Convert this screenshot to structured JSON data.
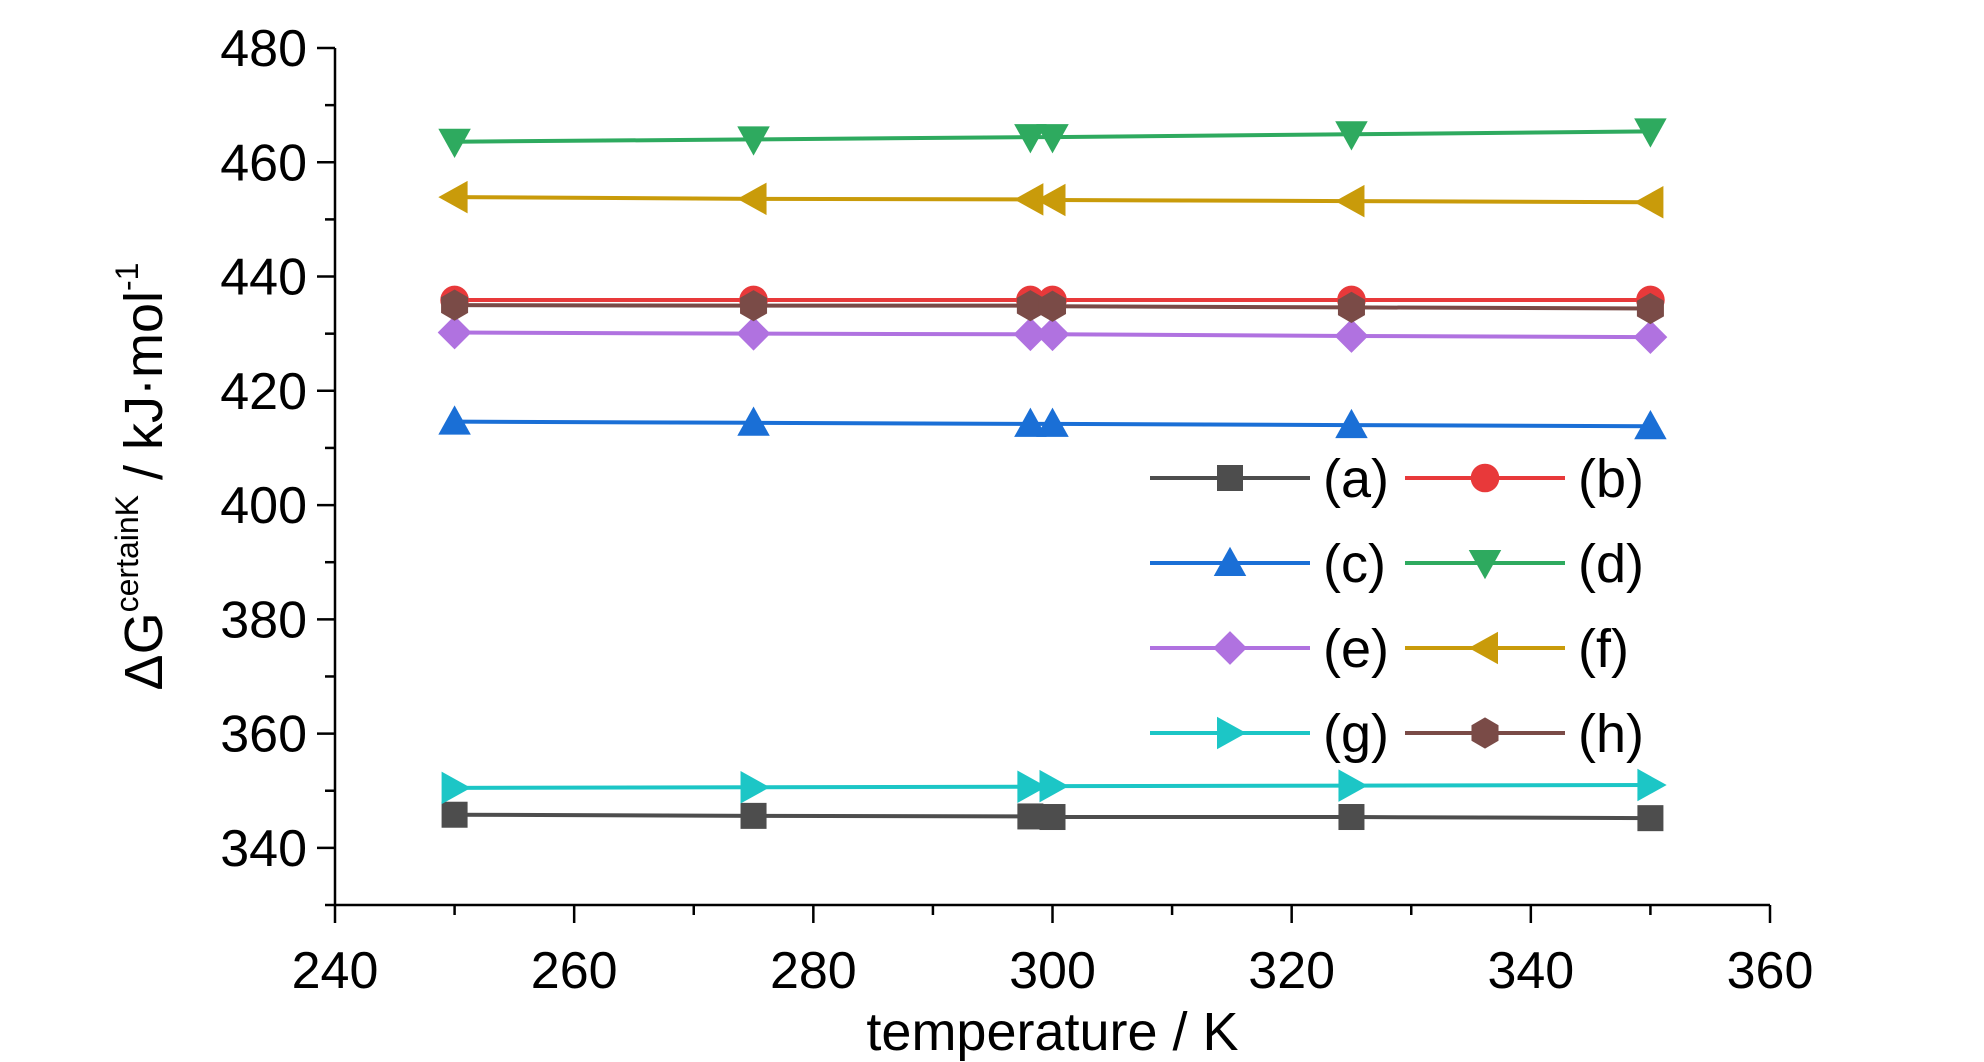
{
  "chart_data": {
    "type": "line",
    "xlabel": "temperature / K",
    "ylabel": {
      "delta": "Δ",
      "main": "G",
      "sup": "certainK",
      "units": " / kJ·mol",
      "units_sup": "-1"
    },
    "xlim": [
      240,
      360
    ],
    "ylim": [
      330,
      480
    ],
    "xticks": [
      240,
      260,
      280,
      300,
      320,
      340,
      360
    ],
    "yticks": [
      340,
      360,
      380,
      400,
      420,
      440,
      460,
      480
    ],
    "x": [
      250,
      275,
      298.15,
      300,
      325,
      350
    ],
    "legend_position": "center-right",
    "series": [
      {
        "name": "(a)",
        "marker": "square",
        "color": "#4d4d4d",
        "values": [
          345.8,
          345.6,
          345.5,
          345.4,
          345.4,
          345.2
        ]
      },
      {
        "name": "(b)",
        "marker": "circle",
        "color": "#e8393a",
        "values": [
          435.9,
          435.9,
          435.9,
          435.9,
          435.9,
          435.9
        ]
      },
      {
        "name": "(c)",
        "marker": "triangle-up",
        "color": "#1a6fd6",
        "values": [
          414.6,
          414.4,
          414.2,
          414.2,
          414.0,
          413.8
        ]
      },
      {
        "name": "(d)",
        "marker": "triangle-down",
        "color": "#2eaa5f",
        "values": [
          463.6,
          464.0,
          464.4,
          464.4,
          464.9,
          465.4
        ]
      },
      {
        "name": "(e)",
        "marker": "diamond",
        "color": "#b072e0",
        "values": [
          430.2,
          430.0,
          429.9,
          429.9,
          429.6,
          429.4
        ]
      },
      {
        "name": "(f)",
        "marker": "triangle-left",
        "color": "#c99b0a",
        "values": [
          453.9,
          453.6,
          453.5,
          453.4,
          453.2,
          453.0
        ]
      },
      {
        "name": "(g)",
        "marker": "triangle-right",
        "color": "#1cc6c6",
        "values": [
          350.5,
          350.6,
          350.7,
          350.8,
          350.9,
          351.0
        ]
      },
      {
        "name": "(h)",
        "marker": "hexagon",
        "color": "#7a4b47",
        "values": [
          435.0,
          434.9,
          434.9,
          434.8,
          434.6,
          434.4
        ]
      }
    ]
  }
}
